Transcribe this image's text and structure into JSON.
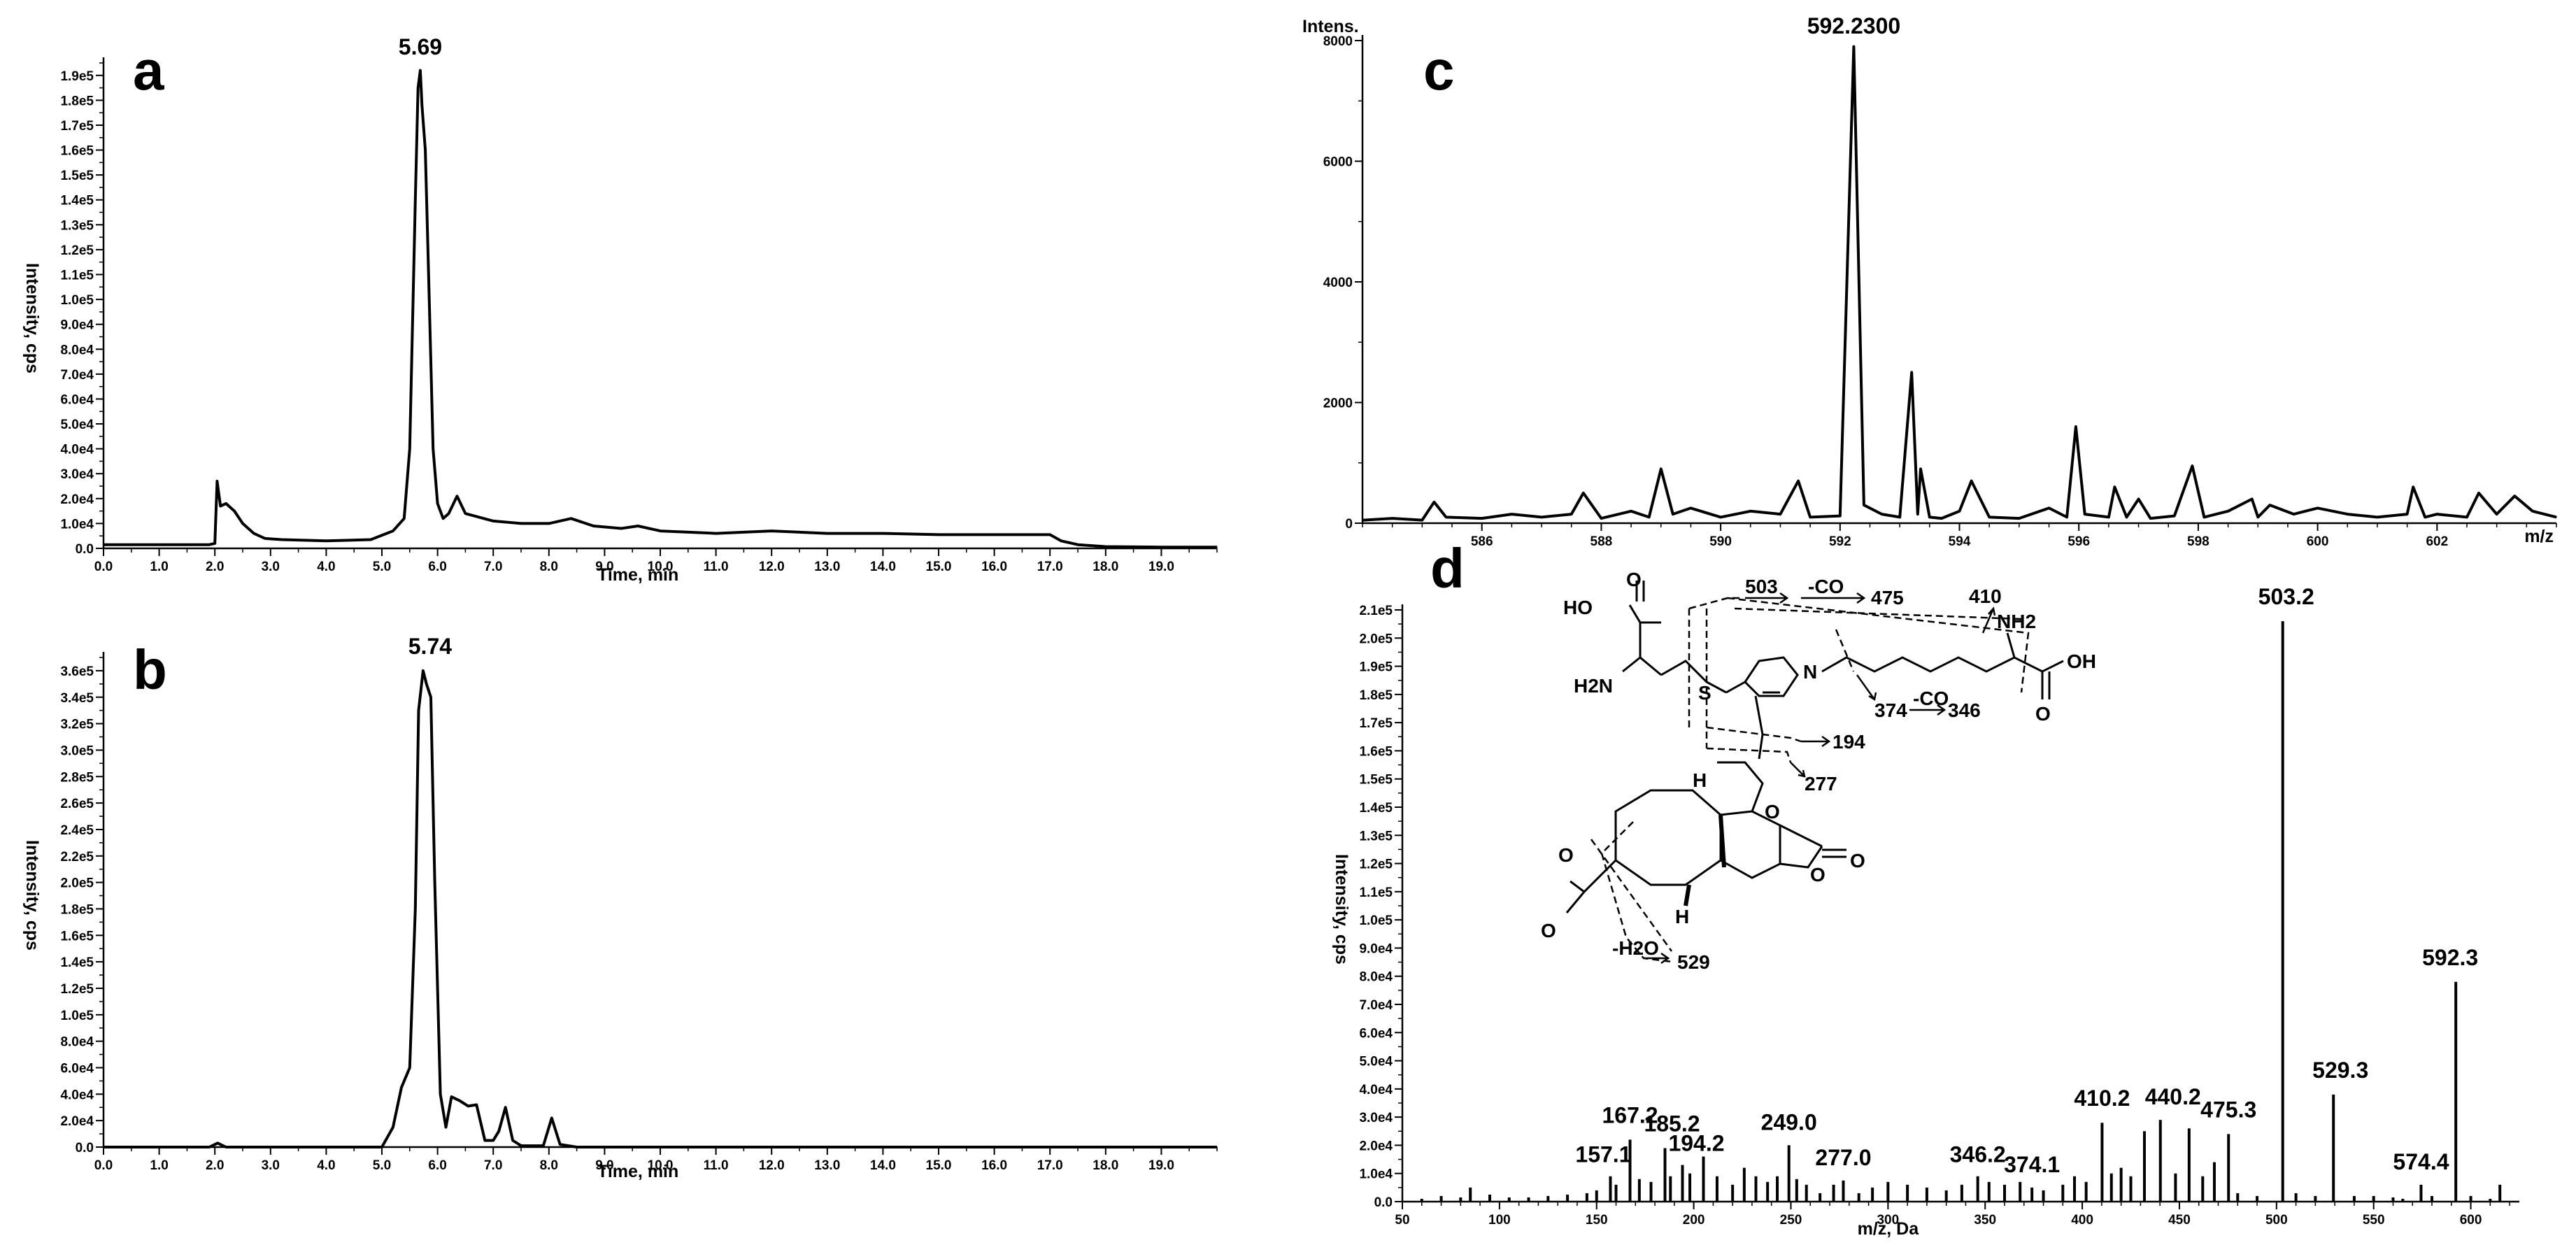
{
  "chart_data": [
    {
      "panel": "a",
      "type": "line",
      "xlabel": "Time, min",
      "ylabel": "Intensity, cps",
      "xlim": [
        0,
        20
      ],
      "ylim": [
        0,
        195000
      ],
      "xticks": [
        "0.0",
        "1.0",
        "2.0",
        "3.0",
        "4.0",
        "5.0",
        "6.0",
        "7.0",
        "8.0",
        "9.0",
        "10.0",
        "11.0",
        "12.0",
        "13.0",
        "14.0",
        "15.0",
        "16.0",
        "17.0",
        "18.0",
        "19.0"
      ],
      "yticks": [
        "0.0",
        "1.0e4",
        "2.0e4",
        "3.0e4",
        "4.0e4",
        "5.0e4",
        "6.0e4",
        "7.0e4",
        "8.0e4",
        "9.0e4",
        "1.0e5",
        "1.1e5",
        "1.2e5",
        "1.3e5",
        "1.4e5",
        "1.5e5",
        "1.6e5",
        "1.7e5",
        "1.8e5",
        "1.9e5"
      ],
      "x": [
        0,
        1.9,
        2.0,
        2.04,
        2.1,
        2.2,
        2.35,
        2.5,
        2.7,
        2.9,
        3.2,
        4.0,
        4.8,
        5.2,
        5.4,
        5.5,
        5.6,
        5.65,
        5.69,
        5.72,
        5.78,
        5.85,
        5.92,
        6.0,
        6.1,
        6.2,
        6.35,
        6.5,
        7.0,
        7.5,
        8.0,
        8.4,
        8.8,
        9.3,
        9.6,
        10.0,
        11.0,
        12.0,
        13.0,
        14.0,
        15.0,
        16.0,
        17.0,
        17.2,
        17.5,
        18.0,
        19.0,
        20.0
      ],
      "y": [
        1500,
        1500,
        2000,
        27000,
        17000,
        18000,
        15000,
        10000,
        6000,
        4000,
        3500,
        3000,
        3500,
        7000,
        12000,
        40000,
        140000,
        185000,
        192000,
        178000,
        160000,
        100000,
        40000,
        18000,
        12000,
        14000,
        21000,
        14000,
        11000,
        10000,
        10000,
        12000,
        9000,
        8000,
        9000,
        7000,
        6000,
        7000,
        6000,
        6000,
        5500,
        5500,
        5500,
        3000,
        1500,
        700,
        500,
        500
      ],
      "annotations": [
        {
          "x": 5.69,
          "label": "5.69"
        }
      ]
    },
    {
      "panel": "b",
      "type": "line",
      "xlabel": "Time, min",
      "ylabel": "Intensity, cps",
      "xlim": [
        0,
        20
      ],
      "ylim": [
        0,
        370000
      ],
      "xticks": [
        "0.0",
        "1.0",
        "2.0",
        "3.0",
        "4.0",
        "5.0",
        "6.0",
        "7.0",
        "8.0",
        "9.0",
        "10.0",
        "11.0",
        "12.0",
        "13.0",
        "14.0",
        "15.0",
        "16.0",
        "17.0",
        "18.0",
        "19.0"
      ],
      "yticks": [
        "0.0",
        "2.0e4",
        "4.0e4",
        "6.0e4",
        "8.0e4",
        "1.0e5",
        "1.2e5",
        "1.4e5",
        "1.6e5",
        "1.8e5",
        "2.0e5",
        "2.2e5",
        "2.4e5",
        "2.6e5",
        "2.8e5",
        "3.0e5",
        "3.2e5",
        "3.4e5",
        "3.6e5"
      ],
      "x": [
        0,
        1.9,
        2.05,
        2.2,
        5.0,
        5.2,
        5.35,
        5.5,
        5.6,
        5.66,
        5.74,
        5.8,
        5.88,
        5.95,
        6.05,
        6.15,
        6.25,
        6.4,
        6.55,
        6.7,
        6.85,
        7.0,
        7.1,
        7.22,
        7.35,
        7.5,
        7.9,
        8.05,
        8.2,
        8.5,
        20.0
      ],
      "y": [
        0,
        0,
        3000,
        0,
        0,
        15000,
        45000,
        60000,
        180000,
        330000,
        360000,
        350000,
        340000,
        200000,
        40000,
        15000,
        38000,
        35000,
        31000,
        32000,
        5000,
        5000,
        12000,
        30000,
        5000,
        1000,
        1000,
        22000,
        2000,
        0,
        0
      ],
      "annotations": [
        {
          "x": 5.74,
          "label": "5.74"
        }
      ]
    },
    {
      "panel": "c",
      "type": "line",
      "xlabel": "m/z",
      "ylabel": "Intens.",
      "xlim": [
        584.0,
        604.0
      ],
      "ylim": [
        0,
        8000
      ],
      "xticks": [
        "586",
        "588",
        "590",
        "592",
        "594",
        "596",
        "598",
        "600",
        "602"
      ],
      "yticks": [
        "0",
        "2000",
        "4000",
        "6000",
        "8000"
      ],
      "x": [
        584.0,
        584.5,
        585.0,
        585.2,
        585.4,
        586.0,
        586.5,
        587.0,
        587.5,
        587.7,
        588.0,
        588.5,
        588.8,
        589.0,
        589.2,
        589.5,
        590.0,
        590.5,
        591.0,
        591.3,
        591.5,
        592.0,
        592.23,
        592.4,
        592.7,
        593.0,
        593.2,
        593.3,
        593.35,
        593.5,
        593.7,
        594.0,
        594.2,
        594.5,
        595.0,
        595.5,
        595.8,
        595.95,
        596.1,
        596.5,
        596.6,
        596.8,
        597.0,
        597.2,
        597.6,
        597.9,
        598.1,
        598.5,
        598.9,
        599.0,
        599.2,
        599.6,
        600.0,
        600.5,
        601.0,
        601.5,
        601.6,
        601.8,
        602.0,
        602.5,
        602.7,
        603.0,
        603.3,
        603.6,
        604.0
      ],
      "y": [
        50,
        80,
        50,
        350,
        100,
        80,
        150,
        100,
        150,
        500,
        80,
        200,
        100,
        900,
        150,
        250,
        100,
        200,
        150,
        700,
        100,
        120,
        7900,
        300,
        150,
        100,
        2500,
        150,
        900,
        100,
        80,
        200,
        700,
        100,
        80,
        250,
        100,
        1600,
        150,
        100,
        600,
        100,
        400,
        80,
        120,
        950,
        100,
        200,
        400,
        100,
        300,
        150,
        250,
        150,
        100,
        150,
        600,
        100,
        150,
        100,
        500,
        150,
        450,
        200,
        100
      ],
      "annotations": [
        {
          "x": 592.23,
          "label": "592.2300"
        }
      ]
    },
    {
      "panel": "d",
      "type": "bar",
      "xlabel": "m/z, Da",
      "ylabel": "Intensity, cps",
      "xlim": [
        50,
        625
      ],
      "ylim": [
        0,
        210000
      ],
      "xticks": [
        "50",
        "100",
        "150",
        "200",
        "250",
        "300",
        "350",
        "400",
        "450",
        "500",
        "550",
        "600"
      ],
      "yticks": [
        "0.0",
        "1.0e4",
        "2.0e4",
        "3.0e4",
        "4.0e4",
        "5.0e4",
        "6.0e4",
        "7.0e4",
        "8.0e4",
        "9.0e4",
        "1.0e5",
        "1.1e5",
        "1.2e5",
        "1.3e5",
        "1.4e5",
        "1.5e5",
        "1.6e5",
        "1.7e5",
        "1.8e5",
        "1.9e5",
        "2.0e5",
        "2.1e5"
      ],
      "x": [
        60,
        70,
        80,
        85,
        95,
        105,
        115,
        125,
        135,
        145,
        150,
        157.1,
        160,
        167.2,
        172,
        178,
        185.2,
        188,
        194.2,
        198,
        205,
        212,
        220,
        226,
        232,
        238,
        243,
        249.0,
        253,
        258,
        265,
        272,
        277.0,
        285,
        292,
        300,
        310,
        320,
        330,
        338,
        346.2,
        352,
        360,
        368,
        374.1,
        380,
        390,
        396,
        402,
        410.2,
        415,
        420,
        425,
        432,
        440.2,
        448,
        455,
        462,
        468,
        475.3,
        480,
        490,
        503.2,
        510,
        520,
        529.3,
        540,
        550,
        560,
        565,
        574.4,
        580,
        592.3,
        600,
        610,
        615
      ],
      "y": [
        1000,
        2000,
        1500,
        5000,
        2500,
        1500,
        1500,
        2000,
        2500,
        3000,
        4000,
        9000,
        6000,
        22000,
        8000,
        7000,
        19000,
        9000,
        13000,
        10000,
        16000,
        9000,
        6000,
        12000,
        9000,
        7000,
        9000,
        20000,
        8000,
        6000,
        3000,
        6000,
        7500,
        3000,
        5000,
        7000,
        6000,
        5000,
        4000,
        6000,
        9000,
        7000,
        6000,
        7000,
        5000,
        4000,
        6000,
        9000,
        7000,
        28000,
        10000,
        12000,
        9000,
        25000,
        29000,
        10000,
        26000,
        9000,
        14000,
        24000,
        3000,
        2000,
        206000,
        3000,
        2000,
        38000,
        2000,
        2000,
        1500,
        1000,
        6000,
        2000,
        78000,
        2000,
        1000,
        6000
      ],
      "annotations": [
        {
          "x": 157.1,
          "label": "157.1"
        },
        {
          "x": 167.2,
          "label": "167.2"
        },
        {
          "x": 185.2,
          "label": "185.2"
        },
        {
          "x": 194.2,
          "label": "194.2"
        },
        {
          "x": 249.0,
          "label": "249.0"
        },
        {
          "x": 277.0,
          "label": "277.0"
        },
        {
          "x": 346.2,
          "label": "346.2"
        },
        {
          "x": 374.1,
          "label": "374.1"
        },
        {
          "x": 410.2,
          "label": "410.2"
        },
        {
          "x": 440.2,
          "label": "440.2"
        },
        {
          "x": 475.3,
          "label": "475.3"
        },
        {
          "x": 503.2,
          "label": "503.2"
        },
        {
          "x": 529.3,
          "label": "529.3"
        },
        {
          "x": 574.4,
          "label": "574.4"
        },
        {
          "x": 592.3,
          "label": "592.3"
        }
      ]
    }
  ],
  "structure": {
    "atoms": {
      "ho": "HO",
      "o_top": "O",
      "h2n": "H2N",
      "s": "S",
      "n": "N",
      "oh": "OH",
      "o_acid": "O",
      "nh2": "NH2",
      "h_top": "H",
      "h_bottom": "H",
      "o_furan": "O",
      "o_lactone": "O",
      "o_lactone2": "O",
      "o_ring": "O",
      "o_left": "O"
    },
    "fragments": {
      "f503": "503",
      "co1": "-CO",
      "f475": "475",
      "f410": "410",
      "f374": "374",
      "co2": "-CO",
      "f346": "346",
      "f194": "194",
      "f277": "277",
      "h2o": "-H2O",
      "f529": "529"
    }
  }
}
